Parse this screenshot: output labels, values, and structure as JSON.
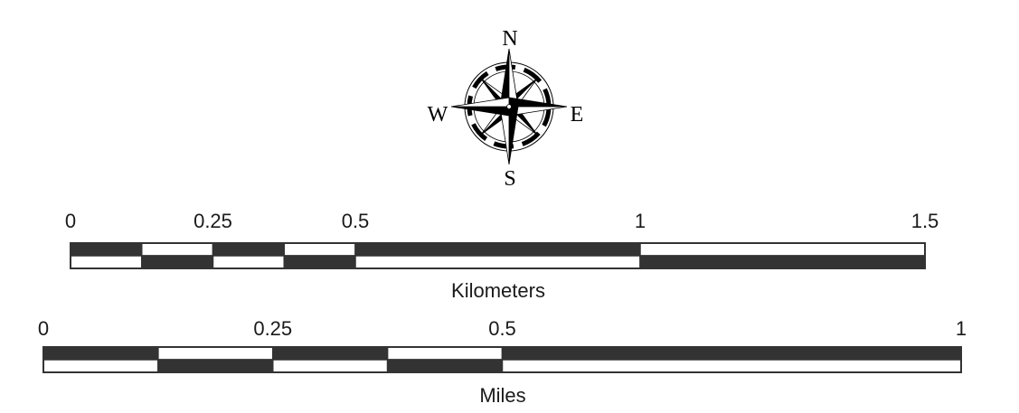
{
  "compass": {
    "north": "N",
    "south": "S",
    "east": "E",
    "west": "W",
    "icon": "compass-rose-icon"
  },
  "scale_bars": [
    {
      "id": "km",
      "unit_label": "Kilometers",
      "max_value": 1.5,
      "ticks": [
        "0",
        "0.25",
        "0.5",
        "1",
        "1.5"
      ],
      "tick_values": [
        0,
        0.25,
        0.5,
        1,
        1.5
      ],
      "segment_boundaries": [
        0,
        0.125,
        0.25,
        0.375,
        0.5,
        1,
        1.5
      ]
    },
    {
      "id": "mi",
      "unit_label": "Miles",
      "max_value": 1,
      "ticks": [
        "0",
        "0.25",
        "0.5",
        "1"
      ],
      "tick_values": [
        0,
        0.25,
        0.5,
        1
      ],
      "segment_boundaries": [
        0,
        0.125,
        0.25,
        0.375,
        0.5,
        1
      ]
    }
  ],
  "colors": {
    "bar_dark": "#333333",
    "bar_light": "#ffffff",
    "ink": "#000000"
  }
}
